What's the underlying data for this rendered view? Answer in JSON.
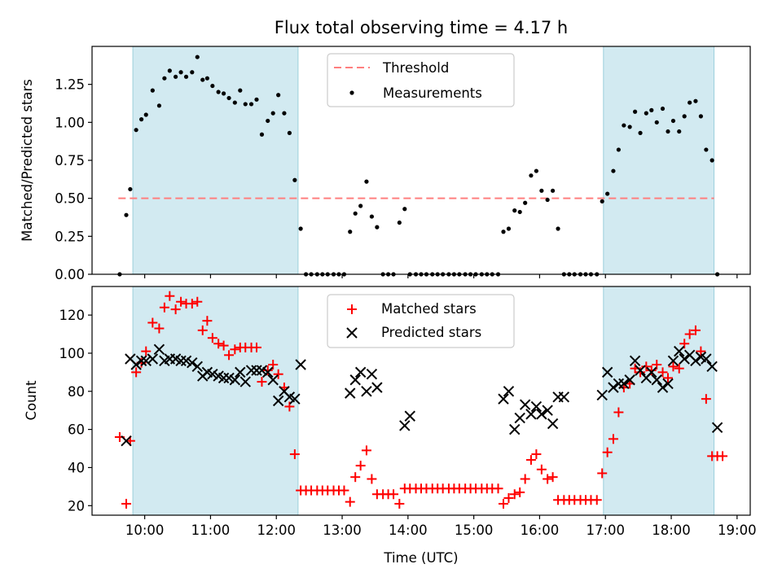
{
  "chart_data": [
    {
      "type": "scatter",
      "title": "Flux total observing time = 4.17 h",
      "ylabel": "Matched/Predicted stars",
      "xlabel": "",
      "xlim": [
        9.2,
        19.2
      ],
      "ylim": [
        0.0,
        1.5
      ],
      "yticks": [
        "0.00",
        "0.25",
        "0.50",
        "0.75",
        "1.00",
        "1.25"
      ],
      "ytick_values": [
        0,
        0.25,
        0.5,
        0.75,
        1.0,
        1.25
      ],
      "xticks": [
        10,
        11,
        12,
        13,
        14,
        15,
        16,
        17,
        18,
        19
      ],
      "shaded_intervals": [
        [
          9.82,
          12.33
        ],
        [
          16.97,
          18.65
        ]
      ],
      "shade_color": "#add8e6",
      "legend_position": "upper center",
      "threshold": {
        "name": "Threshold",
        "value": 0.5,
        "x_start": 9.6,
        "x_end": 18.65,
        "color": "#ff7f7f",
        "style": "dashed"
      },
      "series": [
        {
          "name": "Measurements",
          "color": "#000000",
          "marker": "dot",
          "x": [
            9.62,
            9.72,
            9.78,
            9.87,
            9.95,
            10.02,
            10.12,
            10.22,
            10.3,
            10.38,
            10.47,
            10.55,
            10.63,
            10.72,
            10.8,
            10.88,
            10.95,
            11.03,
            11.12,
            11.2,
            11.28,
            11.37,
            11.45,
            11.53,
            11.62,
            11.7,
            11.78,
            11.87,
            11.95,
            12.03,
            12.12,
            12.2,
            12.28,
            12.37,
            12.45,
            12.53,
            12.62,
            12.7,
            12.78,
            12.87,
            12.95,
            13.03,
            13.12,
            13.2,
            13.28,
            13.37,
            13.45,
            13.53,
            13.62,
            13.7,
            13.78,
            13.87,
            13.95,
            14.03,
            14.12,
            14.2,
            14.28,
            14.37,
            14.45,
            14.53,
            14.62,
            14.7,
            14.78,
            14.87,
            14.95,
            15.03,
            15.12,
            15.2,
            15.28,
            15.37,
            15.45,
            15.53,
            15.62,
            15.7,
            15.78,
            15.87,
            15.95,
            16.03,
            16.12,
            16.2,
            16.28,
            16.37,
            16.45,
            16.53,
            16.62,
            16.7,
            16.78,
            16.87,
            16.95,
            17.03,
            17.12,
            17.2,
            17.28,
            17.37,
            17.45,
            17.53,
            17.62,
            17.7,
            17.78,
            17.87,
            17.95,
            18.03,
            18.12,
            18.2,
            18.28,
            18.37,
            18.45,
            18.53,
            18.62,
            18.7
          ],
          "y": [
            0.0,
            0.39,
            0.56,
            0.95,
            1.02,
            1.05,
            1.21,
            1.11,
            1.29,
            1.34,
            1.3,
            1.33,
            1.3,
            1.33,
            1.43,
            1.28,
            1.29,
            1.24,
            1.2,
            1.19,
            1.16,
            1.13,
            1.21,
            1.12,
            1.12,
            1.15,
            0.92,
            1.01,
            1.06,
            1.18,
            1.06,
            0.93,
            0.62,
            0.3,
            0.0,
            0.0,
            0.0,
            0.0,
            0.0,
            0.0,
            0.0,
            0.0,
            0.28,
            0.4,
            0.45,
            0.61,
            0.38,
            0.31,
            0.0,
            0.0,
            0.0,
            0.34,
            0.43,
            0.0,
            0.0,
            0.0,
            0.0,
            0.0,
            0.0,
            0.0,
            0.0,
            0.0,
            0.0,
            0.0,
            0.0,
            0.0,
            0.0,
            0.0,
            0.0,
            0.0,
            0.28,
            0.3,
            0.42,
            0.41,
            0.47,
            0.65,
            0.68,
            0.55,
            0.49,
            0.55,
            0.3,
            0.0,
            0.0,
            0.0,
            0.0,
            0.0,
            0.0,
            0.0,
            0.48,
            0.53,
            0.68,
            0.82,
            0.98,
            0.97,
            1.07,
            0.93,
            1.06,
            1.08,
            1.0,
            1.09,
            0.94,
            1.01,
            0.94,
            1.04,
            1.13,
            1.14,
            1.04,
            0.82,
            0.75,
            0.0
          ]
        }
      ]
    },
    {
      "type": "scatter",
      "title": "",
      "ylabel": "Count",
      "xlabel": "Time (UTC)",
      "xlim": [
        9.2,
        19.2
      ],
      "ylim": [
        15,
        135
      ],
      "yticks": [
        "20",
        "40",
        "60",
        "80",
        "100",
        "120"
      ],
      "ytick_values": [
        20,
        40,
        60,
        80,
        100,
        120
      ],
      "xticks": [
        10,
        11,
        12,
        13,
        14,
        15,
        16,
        17,
        18,
        19
      ],
      "xtick_labels": [
        "10:00",
        "11:00",
        "12:00",
        "13:00",
        "14:00",
        "15:00",
        "16:00",
        "17:00",
        "18:00",
        "19:00"
      ],
      "shaded_intervals": [
        [
          9.82,
          12.33
        ],
        [
          16.97,
          18.65
        ]
      ],
      "shade_color": "#add8e6",
      "legend_position": "upper center",
      "series": [
        {
          "name": "Matched stars",
          "color": "#ff0000",
          "marker": "plus",
          "x": [
            9.62,
            9.72,
            9.78,
            9.87,
            9.95,
            10.02,
            10.12,
            10.22,
            10.3,
            10.38,
            10.47,
            10.55,
            10.63,
            10.72,
            10.8,
            10.88,
            10.95,
            11.03,
            11.12,
            11.2,
            11.28,
            11.37,
            11.45,
            11.53,
            11.62,
            11.7,
            11.78,
            11.87,
            11.95,
            12.03,
            12.12,
            12.2,
            12.28,
            12.37,
            12.45,
            12.53,
            12.62,
            12.7,
            12.78,
            12.87,
            12.95,
            13.03,
            13.12,
            13.2,
            13.28,
            13.37,
            13.45,
            13.53,
            13.62,
            13.7,
            13.78,
            13.87,
            13.95,
            14.03,
            14.12,
            14.2,
            14.28,
            14.37,
            14.45,
            14.53,
            14.62,
            14.7,
            14.78,
            14.87,
            14.95,
            15.03,
            15.12,
            15.2,
            15.28,
            15.37,
            15.45,
            15.53,
            15.62,
            15.7,
            15.78,
            15.87,
            15.95,
            16.03,
            16.12,
            16.2,
            16.28,
            16.37,
            16.45,
            16.53,
            16.62,
            16.7,
            16.78,
            16.87,
            16.95,
            17.03,
            17.12,
            17.2,
            17.28,
            17.37,
            17.45,
            17.53,
            17.62,
            17.7,
            17.78,
            17.87,
            17.95,
            18.03,
            18.12,
            18.2,
            18.28,
            18.37,
            18.45,
            18.53,
            18.62,
            18.7,
            18.78
          ],
          "y": [
            56,
            21,
            54,
            90,
            95,
            101,
            116,
            113,
            124,
            130,
            123,
            127,
            126,
            126,
            127,
            112,
            117,
            108,
            105,
            104,
            99,
            102,
            103,
            103,
            103,
            103,
            85,
            91,
            94,
            89,
            82,
            72,
            47,
            28,
            28,
            28,
            28,
            28,
            28,
            28,
            28,
            28,
            22,
            35,
            41,
            49,
            34,
            26,
            26,
            26,
            26,
            21,
            29,
            29,
            29,
            29,
            29,
            29,
            29,
            29,
            29,
            29,
            29,
            29,
            29,
            29,
            29,
            29,
            29,
            29,
            21,
            24,
            26,
            27,
            34,
            44,
            47,
            39,
            34,
            35,
            23,
            23,
            23,
            23,
            23,
            23,
            23,
            23,
            37,
            48,
            55,
            69,
            82,
            84,
            92,
            90,
            93,
            91,
            94,
            90,
            87,
            93,
            92,
            105,
            110,
            112,
            101,
            76,
            46,
            46,
            46
          ],
          "note_last_plotted": 111
        },
        {
          "name": "Predicted stars",
          "color": "#000000",
          "marker": "x",
          "x": [
            9.72,
            9.78,
            9.87,
            9.95,
            10.02,
            10.12,
            10.22,
            10.3,
            10.38,
            10.47,
            10.55,
            10.63,
            10.72,
            10.8,
            10.88,
            10.95,
            11.03,
            11.12,
            11.2,
            11.28,
            11.37,
            11.45,
            11.53,
            11.62,
            11.7,
            11.78,
            11.87,
            11.95,
            12.03,
            12.12,
            12.2,
            12.28,
            12.37,
            13.12,
            13.2,
            13.28,
            13.37,
            13.45,
            13.53,
            13.95,
            14.03,
            15.45,
            15.53,
            15.62,
            15.7,
            15.78,
            15.87,
            15.95,
            16.03,
            16.12,
            16.2,
            16.28,
            16.37,
            16.95,
            17.03,
            17.12,
            17.2,
            17.28,
            17.37,
            17.45,
            17.53,
            17.62,
            17.7,
            17.78,
            17.87,
            17.95,
            18.03,
            18.12,
            18.2,
            18.28,
            18.37,
            18.45,
            18.53,
            18.62,
            18.7
          ],
          "y": [
            54,
            97,
            94,
            96,
            96,
            97,
            102,
            96,
            97,
            97,
            96,
            96,
            95,
            93,
            88,
            90,
            89,
            88,
            87,
            87,
            86,
            90,
            85,
            91,
            91,
            91,
            90,
            86,
            75,
            80,
            77,
            76,
            94,
            79,
            86,
            90,
            80,
            89,
            82,
            62,
            67,
            76,
            80,
            60,
            66,
            73,
            68,
            72,
            68,
            70,
            63,
            77,
            77,
            78,
            90,
            82,
            84,
            84,
            86,
            96,
            91,
            87,
            90,
            86,
            82,
            84,
            96,
            101,
            97,
            99,
            96,
            98,
            97,
            93,
            61
          ]
        }
      ]
    }
  ]
}
